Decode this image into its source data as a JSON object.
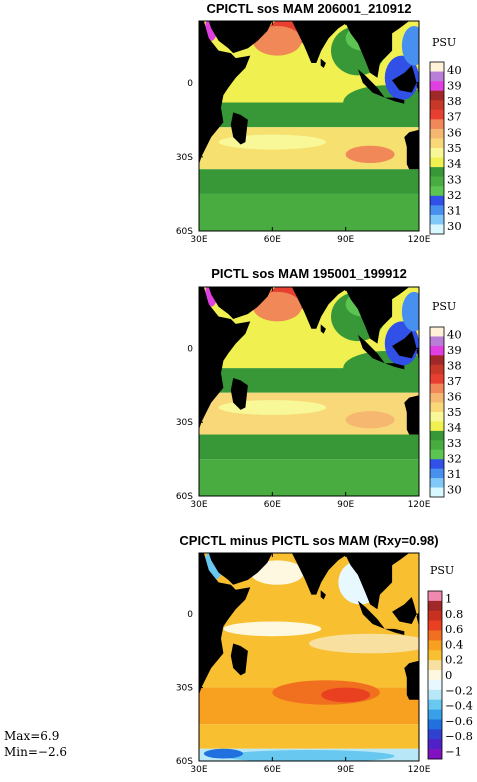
{
  "stats": {
    "max": "Max=6.9",
    "min": "Min=−2.6"
  },
  "chart_data": [
    {
      "type": "heatmap",
      "title": "CPICTL sos MAM 206001_210912",
      "variable": "sos",
      "season": "MAM",
      "unit": "PSU",
      "x_ticks": [
        "30E",
        "60E",
        "90E",
        "120E"
      ],
      "x_range": [
        30,
        120
      ],
      "y_ticks": [
        "0",
        "30S",
        "60S"
      ],
      "y_range": [
        -60,
        25
      ],
      "land_color": "#000000",
      "colorbar": {
        "labels": [
          "40",
          "39",
          "38",
          "37",
          "36",
          "35",
          "34",
          "33",
          "32",
          "31",
          "30"
        ],
        "colors": [
          "#fff2d8",
          "#b97fd8",
          "#e040e0",
          "#a02828",
          "#c83828",
          "#e84030",
          "#f08858",
          "#f6b870",
          "#f8d878",
          "#f8f898",
          "#f0f050",
          "#389838",
          "#48ac40",
          "#5cc450",
          "#3050e8",
          "#4890f0",
          "#80c8f8",
          "#d8f8ff"
        ]
      }
    },
    {
      "type": "heatmap",
      "title": "PICTL sos MAM 195001_199912",
      "variable": "sos",
      "season": "MAM",
      "unit": "PSU",
      "x_ticks": [
        "30E",
        "60E",
        "90E",
        "120E"
      ],
      "x_range": [
        30,
        120
      ],
      "y_ticks": [
        "0",
        "30S",
        "60S"
      ],
      "y_range": [
        -60,
        25
      ],
      "land_color": "#000000",
      "colorbar": {
        "labels": [
          "40",
          "39",
          "38",
          "37",
          "36",
          "35",
          "34",
          "33",
          "32",
          "31",
          "30"
        ],
        "colors": [
          "#fff2d8",
          "#b97fd8",
          "#e040e0",
          "#a02828",
          "#c83828",
          "#e84030",
          "#f08858",
          "#f6b870",
          "#f8d878",
          "#f8f898",
          "#f0f050",
          "#389838",
          "#48ac40",
          "#5cc450",
          "#3050e8",
          "#4890f0",
          "#80c8f8",
          "#d8f8ff"
        ]
      }
    },
    {
      "type": "heatmap",
      "title": "CPICTL minus PICTL sos MAM (Rxy=0.98)",
      "variable": "sos difference",
      "season": "MAM",
      "unit": "PSU",
      "rxy": 0.98,
      "x_ticks": [
        "30E",
        "60E",
        "90E",
        "120E"
      ],
      "x_range": [
        30,
        120
      ],
      "y_ticks": [
        "0",
        "30S",
        "60S"
      ],
      "y_range": [
        -60,
        25
      ],
      "land_color": "#000000",
      "colorbar": {
        "labels": [
          "1",
          "0.8",
          "0.6",
          "0.4",
          "0.2",
          "0",
          "−0.2",
          "−0.4",
          "−0.6",
          "−0.8",
          "−1"
        ],
        "colors": [
          "#f088b0",
          "#a02828",
          "#c83020",
          "#e84020",
          "#f07020",
          "#f8a020",
          "#f8c030",
          "#f8e0a0",
          "#fff8e0",
          "#e8f8ff",
          "#b8e8f8",
          "#68c8f0",
          "#38a0e8",
          "#2070e0",
          "#3040d0",
          "#5020c8",
          "#8010c0"
        ]
      }
    }
  ]
}
